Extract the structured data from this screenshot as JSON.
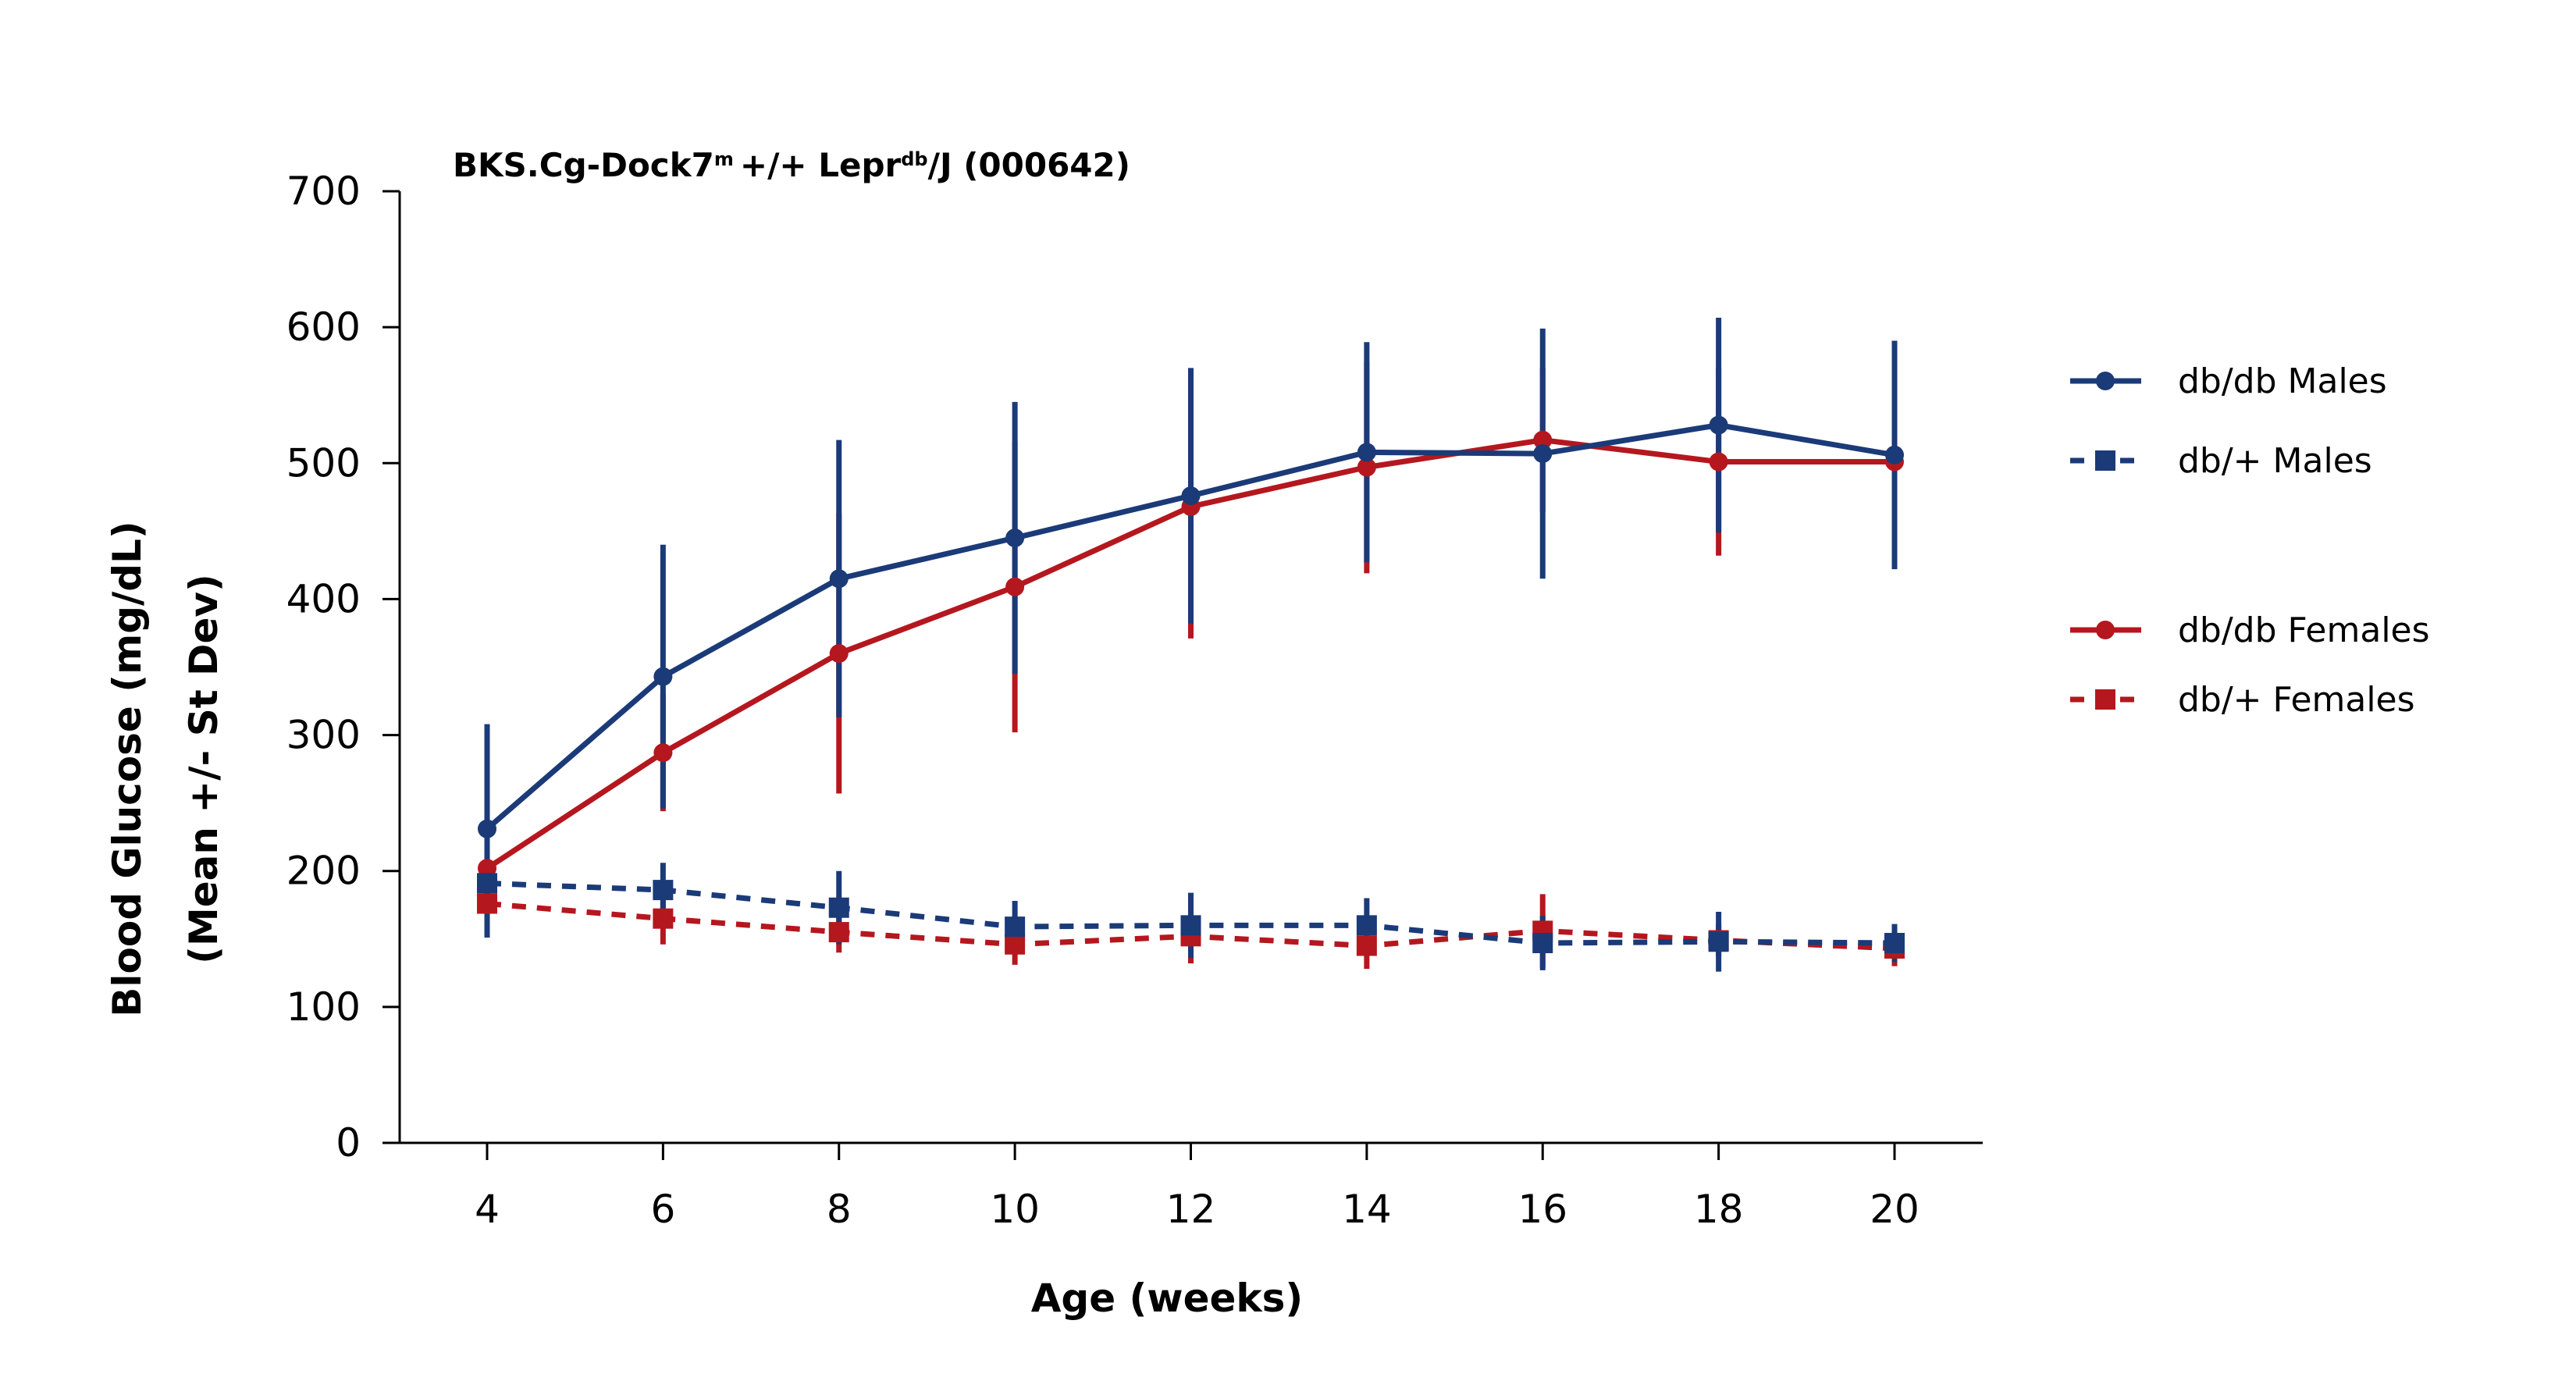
{
  "chart_data": {
    "type": "line",
    "title": {
      "main": "BKS.Cg-Dock7",
      "sup1": "m",
      "mid": "+/+ Lepr",
      "sup2": "db",
      "tail": "/J (000642)"
    },
    "xlabel": "Age (weeks)",
    "ylabel_line1": "Blood Glucose (mg/dL)",
    "ylabel_line2": "(Mean +/- St Dev)",
    "x": [
      4,
      6,
      8,
      10,
      12,
      14,
      16,
      18,
      20
    ],
    "x_ticks": [
      "4",
      "6",
      "8",
      "10",
      "12",
      "14",
      "16",
      "18",
      "20"
    ],
    "ylim": [
      0,
      700
    ],
    "y_ticks": [
      "0",
      "100",
      "200",
      "300",
      "400",
      "500",
      "600",
      "700"
    ],
    "legend_position": "right",
    "colors": {
      "blue": "#1b3a78",
      "red": "#b5171f"
    },
    "series": [
      {
        "name": "db/db Males",
        "color": "#1b3a78",
        "marker": "circle",
        "dash": "solid",
        "values": [
          231,
          343,
          415,
          445,
          476,
          508,
          507,
          528,
          506
        ],
        "err": [
          77,
          97,
          102,
          100,
          94,
          81,
          92,
          79,
          84
        ]
      },
      {
        "name": "db/+ Males",
        "color": "#1b3a78",
        "marker": "square",
        "dash": "dashed",
        "values": [
          191,
          186,
          173,
          159,
          160,
          160,
          147,
          148,
          147
        ],
        "err": [
          40,
          20,
          27,
          19,
          24,
          20,
          20,
          22,
          14
        ]
      },
      {
        "name": "db/db Females",
        "color": "#b5171f",
        "marker": "circle",
        "dash": "solid",
        "values": [
          202,
          287,
          360,
          409,
          468,
          497,
          517,
          501,
          501
        ],
        "err": [
          16,
          43,
          103,
          107,
          97,
          78,
          53,
          69,
          60
        ]
      },
      {
        "name": "db/+ Females",
        "color": "#b5171f",
        "marker": "square",
        "dash": "dashed",
        "values": [
          176,
          165,
          155,
          146,
          152,
          145,
          156,
          149,
          143
        ],
        "err": [
          10,
          19,
          15,
          15,
          20,
          17,
          27,
          12,
          13
        ]
      }
    ]
  }
}
